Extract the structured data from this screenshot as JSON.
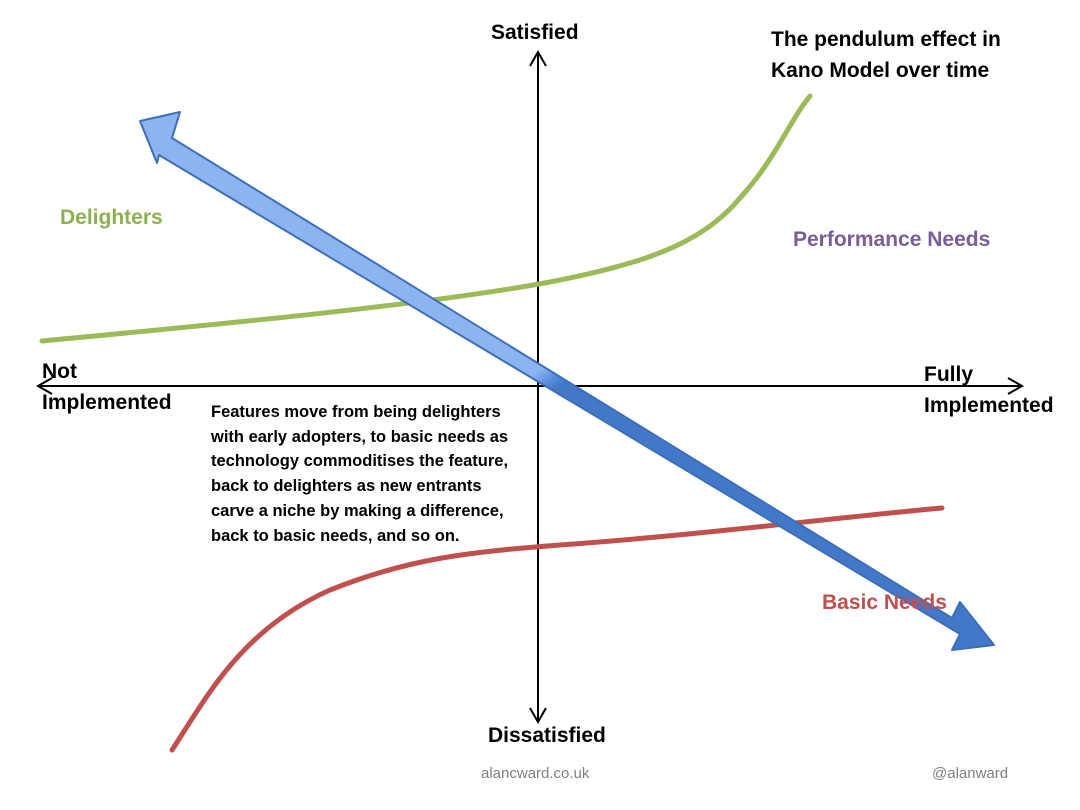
{
  "title": {
    "line1": "The pendulum effect in",
    "line2": "Kano Model over time"
  },
  "axes": {
    "y_top": "Satisfied",
    "y_bottom": "Dissatisfied",
    "x_left_line1": "Not",
    "x_left_line2": "Implemented",
    "x_right_line1": "Fully",
    "x_right_line2": "Implemented"
  },
  "curves": {
    "delighters": {
      "label": "Delighters",
      "color": "#9bbb59"
    },
    "performance": {
      "label": "Performance Needs",
      "color": "#7a5c96"
    },
    "basic": {
      "label": "Basic Needs",
      "color": "#c0504d"
    }
  },
  "arrow": {
    "fill_color": "#5b8fde",
    "stroke_color": "#3d6fb8"
  },
  "description": "Features move from being delighters with early adopters, to basic needs as technology commoditises the feature, back to delighters as new entrants carve a niche by making a difference, back to basic needs, and so on.",
  "footer": {
    "site": "alancward.co.uk",
    "handle": "@alanward"
  }
}
